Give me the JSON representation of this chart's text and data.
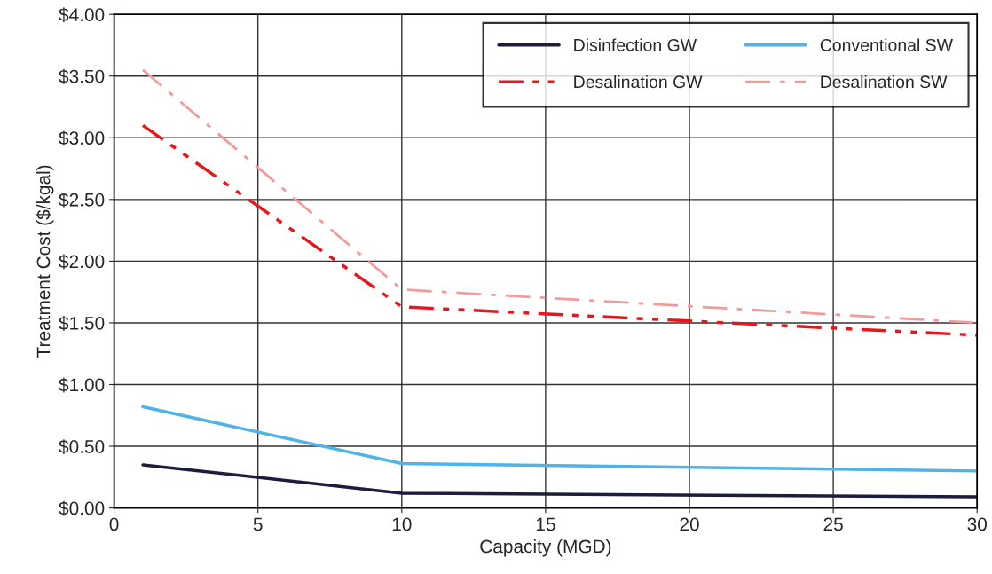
{
  "chart_data": {
    "type": "line",
    "xlabel": "Capacity (MGD)",
    "ylabel": "Treatment Cost ($/kgal)",
    "xlim": [
      0,
      30
    ],
    "xticks": [
      0,
      5,
      10,
      15,
      20,
      25,
      30
    ],
    "ylim": [
      0,
      4
    ],
    "yticks": [
      {
        "value": 0,
        "label": "$0.00"
      },
      {
        "value": 0.5,
        "label": "$0.50"
      },
      {
        "value": 1,
        "label": "$1.00"
      },
      {
        "value": 1.5,
        "label": "$1.50"
      },
      {
        "value": 2,
        "label": "$2.00"
      },
      {
        "value": 2.5,
        "label": "$2.50"
      },
      {
        "value": 3,
        "label": "$3.00"
      },
      {
        "value": 3.5,
        "label": "$3.50"
      },
      {
        "value": 4,
        "label": "$4.00"
      }
    ],
    "grid": true,
    "legend": "top right",
    "marker": "none",
    "x": [
      1,
      10,
      30
    ],
    "series": [
      {
        "name": "Disinfection GW",
        "color": "#1c1c3c",
        "values": [
          0.35,
          0.12,
          0.09
        ],
        "line_style": "solid"
      },
      {
        "name": "Desalination GW",
        "color": "#e5161c",
        "values": [
          3.1,
          1.63,
          1.4
        ],
        "line_style": "dashdotdot"
      },
      {
        "name": "Conventional SW",
        "color": "#4fb3e8",
        "values": [
          0.82,
          0.36,
          0.3
        ],
        "line_style": "solid"
      },
      {
        "name": "Desalination SW",
        "color": "#f59a9a",
        "values": [
          3.55,
          1.77,
          1.5
        ],
        "line_style": "dashdot"
      }
    ]
  }
}
